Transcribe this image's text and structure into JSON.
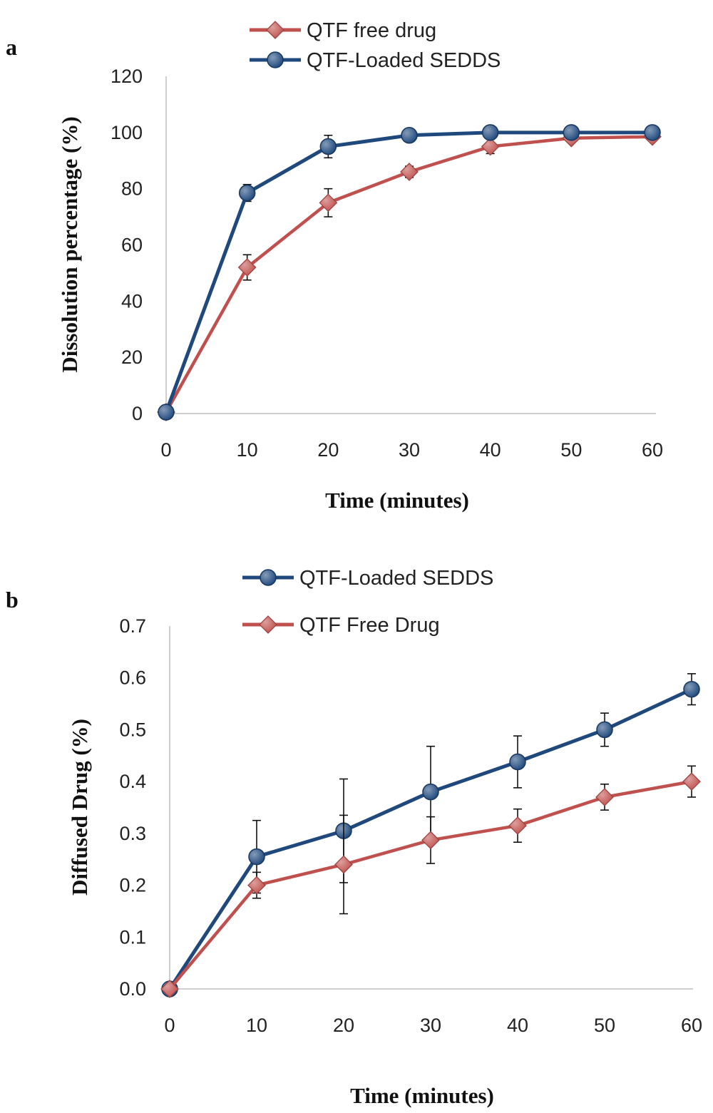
{
  "chart_data": [
    {
      "panel_label": "a",
      "type": "line",
      "xlabel": "Time (minutes)",
      "ylabel": "Dissolution percentage  (%)",
      "xlim": [
        0,
        60
      ],
      "ylim": [
        0,
        120
      ],
      "x_ticks": [
        "0",
        "10",
        "20",
        "30",
        "40",
        "50",
        "60"
      ],
      "y_ticks": [
        "0",
        "20",
        "40",
        "60",
        "80",
        "100",
        "120"
      ],
      "x": [
        0,
        10,
        20,
        30,
        40,
        50,
        60
      ],
      "legend_position": "top",
      "grid": false,
      "series": [
        {
          "name": "QTF free drug",
          "color": "#c0504d",
          "marker": "diamond",
          "values": [
            0.5,
            52,
            75,
            86,
            95,
            98,
            98.5
          ],
          "errors": [
            0,
            4.5,
            5,
            2,
            2.5,
            1.5,
            1
          ]
        },
        {
          "name": "QTF-Loaded SEDDS",
          "color": "#1f497d",
          "marker": "circle",
          "values": [
            0.5,
            78.5,
            95,
            99,
            100,
            100,
            100
          ],
          "errors": [
            0,
            3,
            4,
            1.2,
            1,
            1,
            1
          ]
        }
      ]
    },
    {
      "panel_label": "b",
      "type": "line",
      "xlabel": "Time (minutes)",
      "ylabel": "Diffused Drug (%)",
      "xlim": [
        0,
        60
      ],
      "ylim": [
        0,
        0.7
      ],
      "x_ticks": [
        "0",
        "10",
        "20",
        "30",
        "40",
        "50",
        "60"
      ],
      "y_ticks": [
        "0.0",
        "0.1",
        "0.2",
        "0.3",
        "0.4",
        "0.5",
        "0.6",
        "0.7"
      ],
      "x": [
        0,
        10,
        20,
        30,
        40,
        50,
        60
      ],
      "legend_position": "top",
      "grid": false,
      "series": [
        {
          "name": "QTF-Loaded SEDDS",
          "color": "#1f497d",
          "marker": "circle",
          "values": [
            0,
            0.255,
            0.305,
            0.38,
            0.438,
            0.5,
            0.578
          ],
          "errors": [
            0,
            0.07,
            0.1,
            0.088,
            0.05,
            0.032,
            0.03
          ]
        },
        {
          "name": "QTF Free Drug",
          "color": "#c0504d",
          "marker": "diamond",
          "values": [
            0,
            0.2,
            0.24,
            0.287,
            0.315,
            0.37,
            0.4
          ],
          "errors": [
            0,
            0.025,
            0.095,
            0.045,
            0.032,
            0.025,
            0.03
          ]
        }
      ]
    }
  ]
}
